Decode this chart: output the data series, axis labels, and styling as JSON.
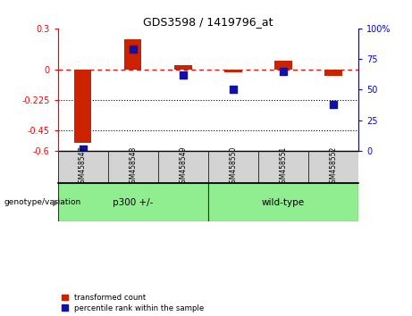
{
  "title": "GDS3598 / 1419796_at",
  "samples": [
    "GSM458547",
    "GSM458548",
    "GSM458549",
    "GSM458550",
    "GSM458551",
    "GSM458552"
  ],
  "red_values": [
    -0.54,
    0.22,
    0.03,
    -0.02,
    0.06,
    -0.05
  ],
  "blue_values": [
    1,
    83,
    62,
    50,
    65,
    38
  ],
  "ylim_left": [
    -0.6,
    0.3
  ],
  "ylim_right": [
    0,
    100
  ],
  "yticks_left": [
    0.3,
    0.0,
    -0.225,
    -0.45,
    -0.6
  ],
  "yticks_left_labels": [
    "0.3",
    "0",
    "-0.225",
    "-0.45",
    "-0.6"
  ],
  "yticks_right": [
    100,
    75,
    50,
    25,
    0
  ],
  "yticks_right_labels": [
    "100%",
    "75",
    "50",
    "25",
    "0"
  ],
  "dotted_lines": [
    -0.225,
    -0.45
  ],
  "bar_color_red": "#CC2200",
  "bar_color_blue": "#1010AA",
  "legend_red": "transformed count",
  "legend_blue": "percentile rank within the sample",
  "xlabel_group": "genotype/variation",
  "group1_name": "p300 +/-",
  "group1_range": [
    0,
    2
  ],
  "group2_name": "wild-type",
  "group2_range": [
    3,
    5
  ],
  "group_color": "#90EE90",
  "bar_width": 0.35,
  "blue_marker_size": 40
}
